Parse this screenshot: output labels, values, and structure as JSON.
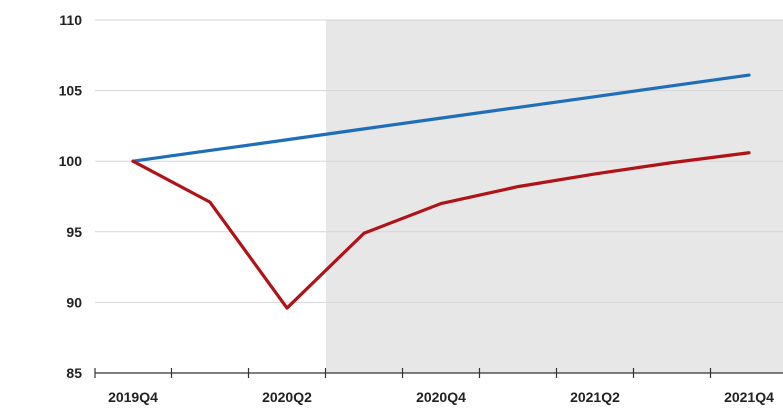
{
  "chart_data": {
    "type": "line",
    "x": [
      "2019Q4",
      "2020Q1",
      "2020Q2",
      "2020Q3",
      "2020Q4",
      "2021Q1",
      "2021Q2",
      "2021Q3",
      "2021Q4"
    ],
    "x_tick_labels": [
      "2019Q4",
      "2020Q2",
      "2020Q4",
      "2021Q2",
      "2021Q4"
    ],
    "ylim": [
      85,
      110
    ],
    "y_ticks": [
      85,
      90,
      95,
      100,
      105,
      110
    ],
    "grid": "horizontal",
    "shaded_region": {
      "from": "2020Q3",
      "to": "2021Q4",
      "color": "#e8e7e8"
    },
    "series": [
      {
        "color": "#1f6fb8",
        "values": [
          100,
          100.76,
          101.52,
          102.29,
          103.05,
          103.81,
          104.57,
          105.34,
          106.1
        ]
      },
      {
        "color": "#b01216",
        "values": [
          100,
          97.1,
          89.6,
          94.9,
          97.0,
          98.2,
          99.1,
          99.9,
          100.6
        ]
      }
    ],
    "title": "",
    "xlabel": "",
    "ylabel": ""
  }
}
